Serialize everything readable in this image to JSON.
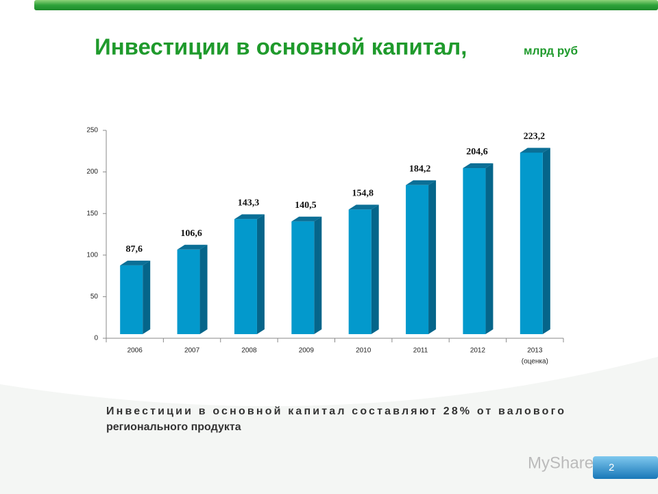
{
  "chart_data": {
    "type": "bar3d",
    "title": "Инвестиции в основной капитал,",
    "subtitle": "млрд руб",
    "categories": [
      "2006",
      "2007",
      "2008",
      "2009",
      "2010",
      "2011",
      "2012",
      "2013"
    ],
    "x_note": "(оценка)",
    "values": [
      87.6,
      106.6,
      143.3,
      140.5,
      154.8,
      184.2,
      204.6,
      223.2
    ],
    "value_labels": [
      "87,6",
      "106,6",
      "143,3",
      "140,5",
      "154,8",
      "184,2",
      "204,6",
      "223,2"
    ],
    "color": "#0399cc",
    "ylim": [
      0,
      250
    ],
    "yticks": [
      0,
      50,
      100,
      150,
      200,
      250
    ]
  },
  "footer": {
    "text": "Инвестиции в основной капитал составляют 28% от валового регионального продукта",
    "page_number": "2",
    "watermark": "MyShared"
  }
}
